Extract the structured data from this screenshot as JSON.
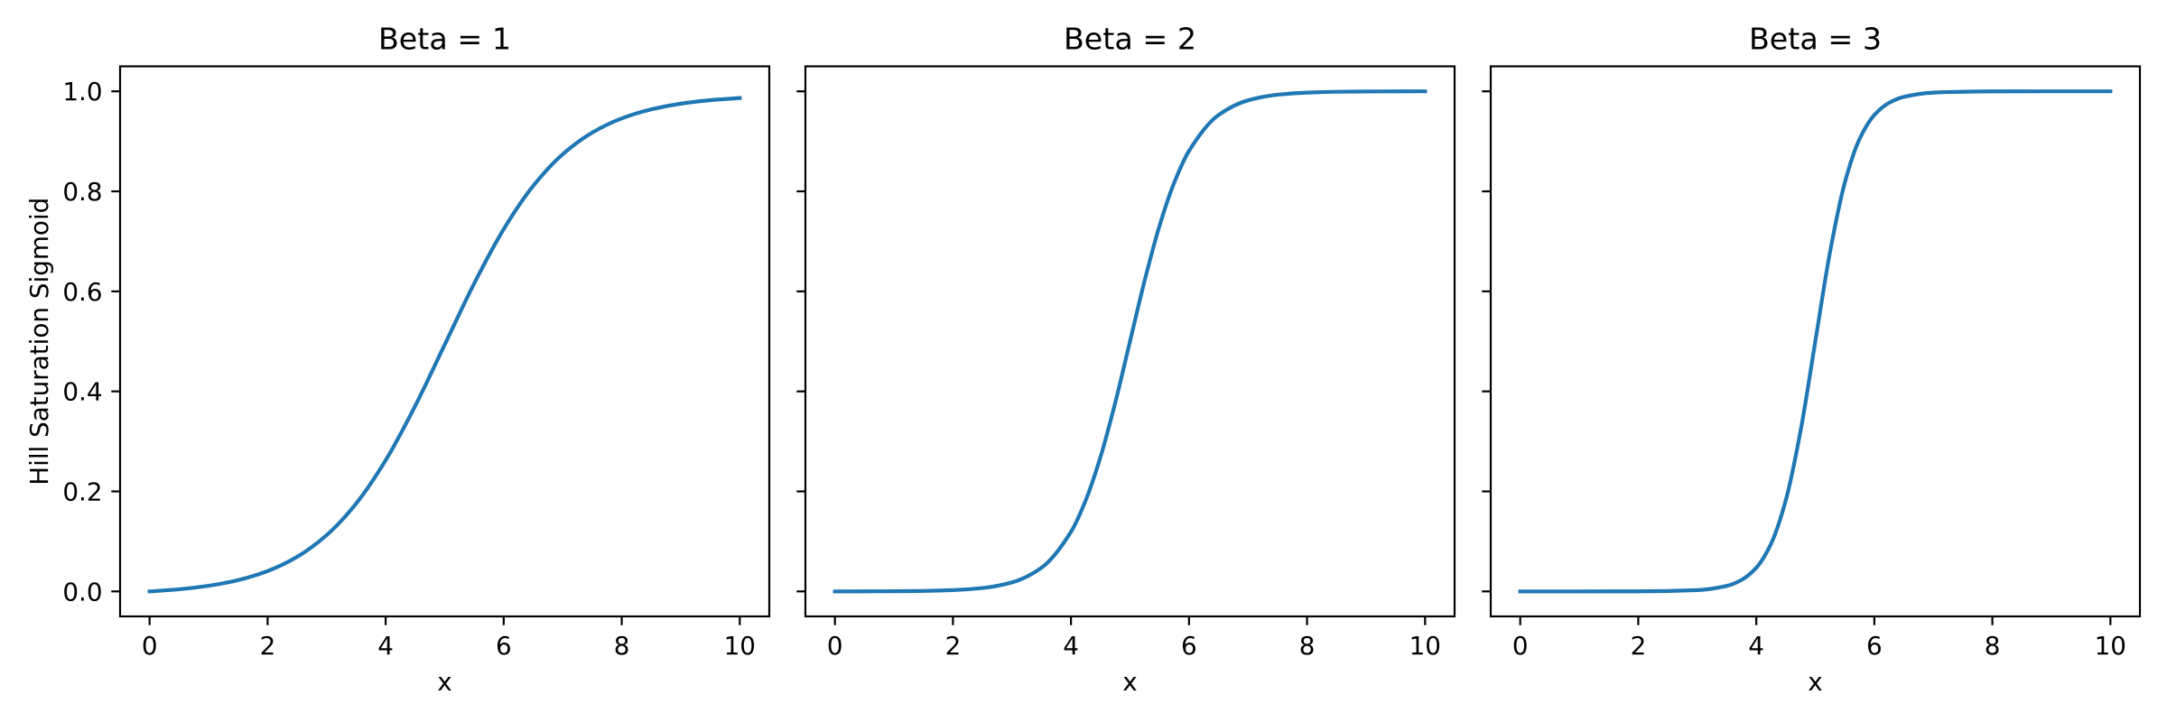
{
  "chart_data": [
    {
      "type": "line",
      "title": "Beta = 1",
      "xlabel": "x",
      "ylabel": "Hill Saturation Sigmoid",
      "xlim": [
        -0.5,
        10.5
      ],
      "ylim": [
        -0.05,
        1.05
      ],
      "xticks": [
        "0",
        "2",
        "4",
        "6",
        "8",
        "10"
      ],
      "yticks": [
        "0.0",
        "0.2",
        "0.4",
        "0.6",
        "0.8",
        "1.0"
      ],
      "grid": false,
      "color": "#1f77b4",
      "x": [
        0,
        0.5,
        1,
        1.5,
        2,
        2.5,
        3,
        3.5,
        4,
        4.5,
        5,
        5.5,
        6,
        6.5,
        7,
        7.5,
        8,
        8.5,
        9,
        9.5,
        10
      ],
      "y": [
        0,
        0.0043,
        0.0113,
        0.0226,
        0.0407,
        0.0692,
        0.1125,
        0.1757,
        0.2623,
        0.3709,
        0.4933,
        0.6158,
        0.7244,
        0.8109,
        0.8741,
        0.9175,
        0.9459,
        0.964,
        0.9753,
        0.9823,
        0.9866
      ]
    },
    {
      "type": "line",
      "title": "Beta = 2",
      "xlabel": "x",
      "ylabel": "",
      "xlim": [
        -0.5,
        10.5
      ],
      "ylim": [
        -0.05,
        1.05
      ],
      "xticks": [
        "0",
        "2",
        "4",
        "6",
        "8",
        "10"
      ],
      "yticks": [],
      "grid": false,
      "color": "#1f77b4",
      "x": [
        0,
        0.5,
        1,
        1.5,
        2,
        2.5,
        3,
        3.5,
        4,
        4.25,
        4.5,
        4.75,
        5,
        5.25,
        5.5,
        5.75,
        6,
        6.5,
        7,
        7.5,
        8,
        8.5,
        9,
        9.5,
        10
      ],
      "y": [
        0,
        0.0001,
        0.0003,
        0.0009,
        0.0025,
        0.0067,
        0.018,
        0.0474,
        0.1192,
        0.1824,
        0.2689,
        0.3775,
        0.5,
        0.6225,
        0.7311,
        0.8176,
        0.8808,
        0.9526,
        0.982,
        0.9933,
        0.9975,
        0.9991,
        0.9997,
        0.9999,
        1.0
      ]
    },
    {
      "type": "line",
      "title": "Beta = 3",
      "xlabel": "x",
      "ylabel": "",
      "xlim": [
        -0.5,
        10.5
      ],
      "ylim": [
        -0.05,
        1.05
      ],
      "xticks": [
        "0",
        "2",
        "4",
        "6",
        "8",
        "10"
      ],
      "yticks": [],
      "grid": false,
      "color": "#1f77b4",
      "x": [
        0,
        1,
        2,
        3,
        3.5,
        3.75,
        4,
        4.25,
        4.5,
        4.75,
        5,
        5.25,
        5.5,
        5.75,
        6,
        6.25,
        6.5,
        7,
        8,
        9,
        10
      ],
      "y": [
        0,
        0,
        0.0001,
        0.0025,
        0.011,
        0.023,
        0.0474,
        0.0953,
        0.1824,
        0.3208,
        0.5,
        0.6792,
        0.8176,
        0.9047,
        0.9526,
        0.977,
        0.989,
        0.9975,
        0.9999,
        1.0,
        1.0
      ]
    }
  ]
}
